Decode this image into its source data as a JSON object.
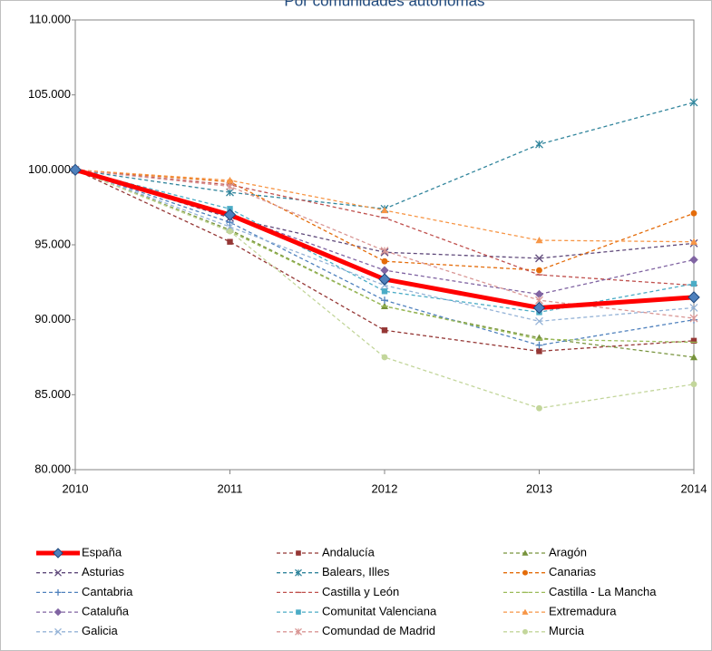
{
  "chart_data": {
    "type": "line",
    "title": "Por comunidades autónomas",
    "x": [
      2010,
      2011,
      2012,
      2013,
      2014
    ],
    "xlim": [
      2010,
      2014
    ],
    "xticks": [
      2010,
      2011,
      2012,
      2013,
      2014
    ],
    "ylim": [
      80,
      110
    ],
    "yticks": [
      {
        "value": 80,
        "label": "80.000"
      },
      {
        "value": 85,
        "label": "85.000"
      },
      {
        "value": 90,
        "label": "90.000"
      },
      {
        "value": 95,
        "label": "95.000"
      },
      {
        "value": 100,
        "label": "100.000"
      },
      {
        "value": 105,
        "label": "105.000"
      },
      {
        "value": 110,
        "label": "110.000"
      }
    ],
    "grid": false,
    "legend": "bottom",
    "series": [
      {
        "name": "España",
        "color": "#ff0000",
        "marker": "diamond",
        "values": [
          100,
          97.0,
          92.7,
          90.8,
          91.5
        ]
      },
      {
        "name": "Andalucía",
        "color": "#953735",
        "marker": "square",
        "values": [
          100,
          95.2,
          89.3,
          87.9,
          88.6
        ]
      },
      {
        "name": "Aragón",
        "color": "#77933c",
        "marker": "triangle",
        "values": [
          100,
          96.0,
          90.9,
          88.8,
          87.5
        ]
      },
      {
        "name": "Asturias",
        "color": "#604a7b",
        "marker": "x",
        "values": [
          100,
          96.8,
          94.5,
          94.1,
          95.1
        ]
      },
      {
        "name": "Balears, Illes",
        "color": "#31859c",
        "marker": "star",
        "values": [
          100,
          98.5,
          97.4,
          101.7,
          104.5
        ]
      },
      {
        "name": "Canarias",
        "color": "#e46c0a",
        "marker": "circle",
        "values": [
          100,
          99.2,
          93.9,
          93.3,
          97.1
        ]
      },
      {
        "name": "Cantabria",
        "color": "#4f81bd",
        "marker": "plus",
        "values": [
          100,
          96.5,
          91.3,
          88.3,
          90.0
        ]
      },
      {
        "name": "Castilla y León",
        "color": "#c0504d",
        "marker": "dash",
        "values": [
          100,
          99.0,
          96.8,
          93.0,
          92.3
        ]
      },
      {
        "name": "Castilla - La Mancha",
        "color": "#9bbb59",
        "marker": "dash",
        "values": [
          100,
          95.9,
          90.9,
          88.7,
          88.5
        ]
      },
      {
        "name": "Cataluña",
        "color": "#8064a2",
        "marker": "diamond",
        "values": [
          100,
          97.0,
          93.3,
          91.7,
          94.0
        ]
      },
      {
        "name": "Comunitat Valenciana",
        "color": "#4bacc6",
        "marker": "square",
        "values": [
          100,
          97.4,
          91.9,
          90.5,
          92.4
        ]
      },
      {
        "name": "Extremadura",
        "color": "#f79646",
        "marker": "triangle",
        "values": [
          100,
          99.3,
          97.3,
          95.3,
          95.2
        ]
      },
      {
        "name": "Galicia",
        "color": "#95b3d7",
        "marker": "x",
        "values": [
          100,
          96.2,
          92.3,
          89.9,
          90.8
        ]
      },
      {
        "name": "Comundad de Madrid",
        "color": "#d99694",
        "marker": "star",
        "values": [
          100,
          98.9,
          94.6,
          91.3,
          90.1
        ]
      },
      {
        "name": "Murcia",
        "color": "#c3d69b",
        "marker": "circle",
        "values": [
          100,
          95.9,
          87.5,
          84.1,
          85.7
        ]
      }
    ]
  }
}
